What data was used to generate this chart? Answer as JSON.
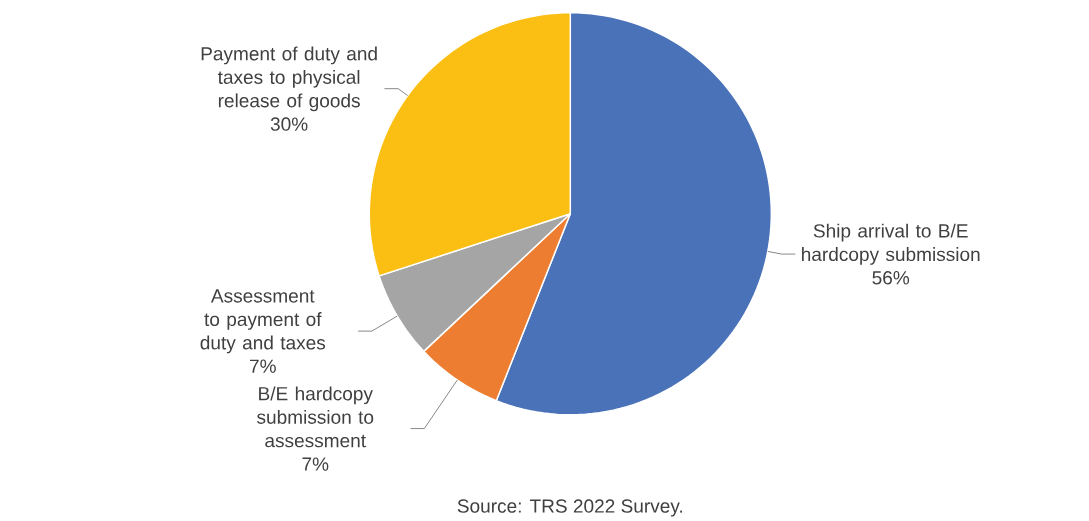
{
  "chart_data": {
    "type": "pie",
    "categories": [
      "Ship arrival to B/E hardcopy submission",
      "B/E hardcopy submission to assessment",
      "Assessment to payment of duty and taxes",
      "Payment of duty and taxes to physical release of goods"
    ],
    "values": [
      56,
      7,
      7,
      30
    ],
    "value_labels": [
      "56%",
      "7%",
      "7%",
      "30%"
    ],
    "colors": [
      "#4a72b8",
      "#ed7d31",
      "#a5a5a5",
      "#fbbf14"
    ],
    "annotations": [
      "Source: TRS 2022 Survey."
    ]
  }
}
